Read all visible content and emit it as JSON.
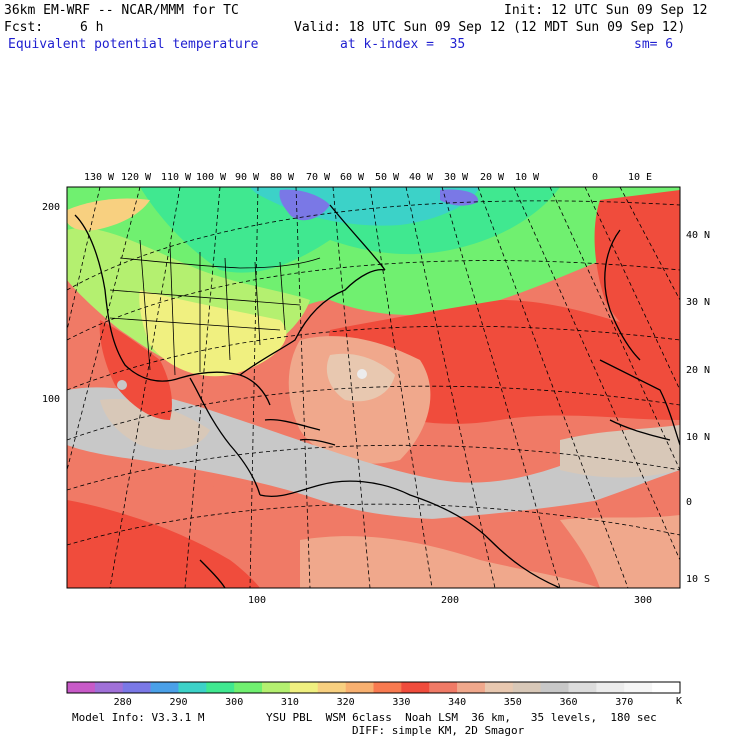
{
  "header": {
    "model_title": "36km EM-WRF -- NCAR/MMM for TC",
    "init": "Init: 12 UTC Sun 09 Sep 12",
    "fcst_label": "Fcst:",
    "fcst_value": "6 h",
    "valid": "Valid: 18 UTC Sun 09 Sep 12 (12 MDT Sun 09 Sep 12)",
    "field": "Equivalent potential temperature",
    "level": "at k-index =  35",
    "smoothing": "sm= 6"
  },
  "map": {
    "lon_labels": [
      "130 W",
      "120 W",
      "110 W",
      "100 W",
      "90 W",
      "80 W",
      "70 W",
      "60 W",
      "50 W",
      "40 W",
      "30 W",
      "20 W",
      "10 W",
      "0",
      "10 E"
    ],
    "lat_labels": [
      "40 N",
      "30 N",
      "20 N",
      "10 N",
      "0",
      "10 S"
    ],
    "grid_y_labels": [
      "200",
      "100"
    ],
    "grid_x_labels": [
      "100",
      "200",
      "300"
    ]
  },
  "colorbar": {
    "tick_labels": [
      "280",
      "290",
      "300",
      "310",
      "320",
      "330",
      "340",
      "350",
      "360",
      "370"
    ],
    "unit": "K",
    "colors": [
      "#c85ac8",
      "#a070d8",
      "#7a78e6",
      "#4aa0e8",
      "#3cd2c8",
      "#40e890",
      "#70f070",
      "#b4f070",
      "#f0f080",
      "#f8d080",
      "#f8b070",
      "#f87a50",
      "#f04c3c",
      "#f07a66",
      "#f0a88c",
      "#e8c8b0",
      "#d8c8b8",
      "#c8c8c8",
      "#dcdcdc",
      "#ececec",
      "#f6f6f6",
      "#ffffff"
    ]
  },
  "footer": {
    "model_info": "Model Info: V3.3.1 M",
    "physics_line1": "YSU PBL  WSM 6class  Noah LSM  36 km,   35 levels,  180 sec",
    "physics_line2": "DIFF: simple KM, 2D Smagor"
  }
}
